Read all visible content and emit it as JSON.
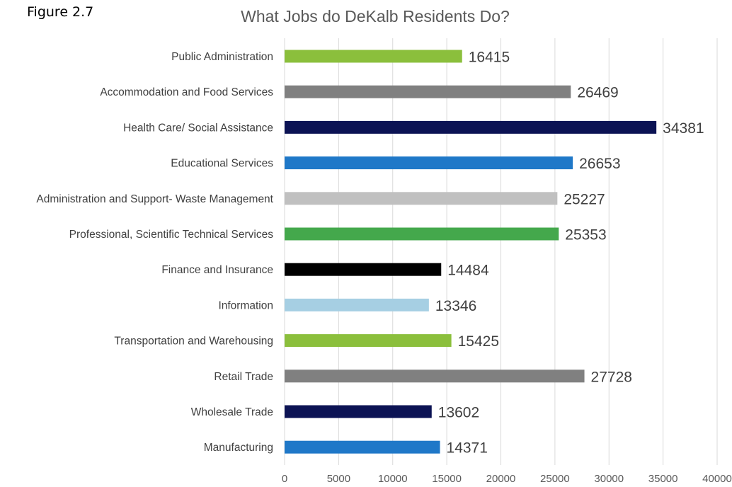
{
  "figure_label": "Figure 2.7",
  "chart_data": {
    "type": "bar",
    "orientation": "horizontal",
    "title": "What Jobs do DeKalb Residents Do?",
    "xlabel": "",
    "ylabel": "",
    "xlim": [
      0,
      40000
    ],
    "xticks": [
      "0",
      "5000",
      "10000",
      "15000",
      "20000",
      "25000",
      "30000",
      "35000",
      "40000"
    ],
    "grid": true,
    "legend": "none",
    "categories": [
      "Public Administration",
      "Accommodation and Food Services",
      "Health Care/ Social Assistance",
      "Educational Services",
      "Administration and Support- Waste Management",
      "Professional, Scientific Technical Services",
      "Finance and Insurance",
      "Information",
      "Transportation and Warehousing",
      "Retail Trade",
      "Wholesale Trade",
      "Manufacturing"
    ],
    "values": [
      16415,
      26469,
      34381,
      26653,
      25227,
      25353,
      14484,
      13346,
      15425,
      27728,
      13602,
      14371
    ],
    "colors": [
      "#8bbf3c",
      "#808080",
      "#0c1354",
      "#1f78c8",
      "#c0c0c0",
      "#44a84c",
      "#000000",
      "#a6cfe3",
      "#8bbf3c",
      "#808080",
      "#0c1354",
      "#1f78c8"
    ]
  }
}
